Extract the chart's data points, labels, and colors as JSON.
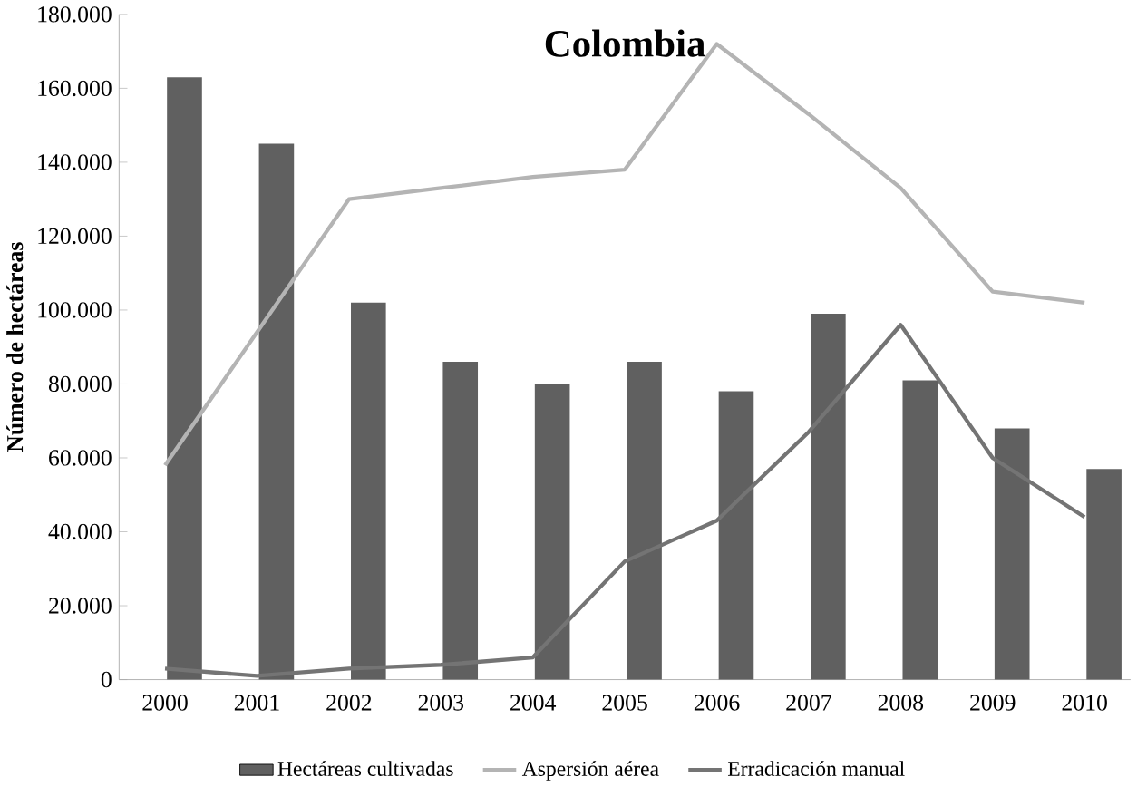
{
  "chart_data": {
    "type": "bar",
    "title": "Colombia",
    "ylabel": "Número de hectáreas",
    "categories": [
      "2000",
      "2001",
      "2002",
      "2003",
      "2004",
      "2005",
      "2006",
      "2007",
      "2008",
      "2009",
      "2010"
    ],
    "series": [
      {
        "name": "Hectáreas cultivadas",
        "type": "bar",
        "color": "#606060",
        "values": [
          163000,
          145000,
          102000,
          86000,
          80000,
          86000,
          78000,
          99000,
          81000,
          68000,
          57000
        ]
      },
      {
        "name": "Aspersión aérea",
        "type": "line",
        "color": "#b4b4b4",
        "values": [
          58000,
          94000,
          130000,
          133000,
          136000,
          138000,
          172000,
          153000,
          133000,
          105000,
          102000
        ]
      },
      {
        "name": "Erradicación manual",
        "type": "line",
        "color": "#747474",
        "values": [
          3000,
          1000,
          3000,
          4000,
          6000,
          32000,
          43000,
          67000,
          96000,
          60000,
          44000
        ]
      }
    ],
    "ylim": [
      0,
      180000
    ],
    "yticks": [
      {
        "value": 0,
        "label": "0"
      },
      {
        "value": 20000,
        "label": "20.000"
      },
      {
        "value": 40000,
        "label": "40.000"
      },
      {
        "value": 60000,
        "label": "60.000"
      },
      {
        "value": 80000,
        "label": "80.000"
      },
      {
        "value": 100000,
        "label": "100.000"
      },
      {
        "value": 120000,
        "label": "120.000"
      },
      {
        "value": 140000,
        "label": "140.000"
      },
      {
        "value": 160000,
        "label": "160.000"
      },
      {
        "value": 180000,
        "label": "180.000"
      }
    ],
    "grid": false,
    "legend": "bottom",
    "marker": "none",
    "line_style": "solid"
  }
}
